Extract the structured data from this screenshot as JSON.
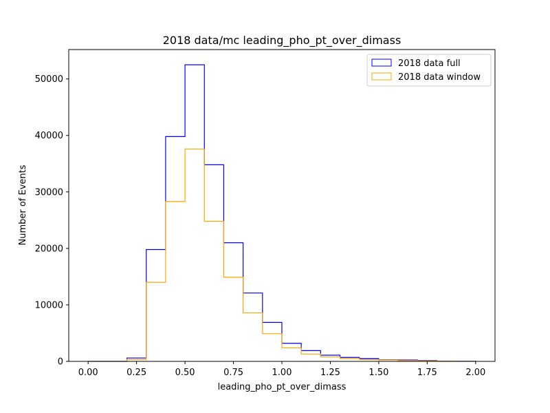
{
  "chart_data": {
    "type": "step-histogram",
    "title": "2018 data/mc leading_pho_pt_over_dimass",
    "xlabel": "leading_pho_pt_over_dimass",
    "ylabel": "Number of Events",
    "xlim": [
      -0.1,
      2.1
    ],
    "ylim": [
      0,
      55200
    ],
    "xticks": [
      0.0,
      0.25,
      0.5,
      0.75,
      1.0,
      1.25,
      1.5,
      1.75,
      2.0
    ],
    "xtick_labels": [
      "0.00",
      "0.25",
      "0.50",
      "0.75",
      "1.00",
      "1.25",
      "1.50",
      "1.75",
      "2.00"
    ],
    "yticks": [
      0,
      10000,
      20000,
      30000,
      40000,
      50000
    ],
    "ytick_labels": [
      "0",
      "10000",
      "20000",
      "30000",
      "40000",
      "50000"
    ],
    "grid": false,
    "legend_position": "top-right",
    "bin_edges": [
      0.0,
      0.1,
      0.2,
      0.3,
      0.4,
      0.5,
      0.6,
      0.7,
      0.8,
      0.9,
      1.0,
      1.1,
      1.2,
      1.3,
      1.4,
      1.5,
      1.6,
      1.7,
      1.8,
      1.9,
      2.0
    ],
    "series": [
      {
        "name": "2018 data full",
        "color": "#0000ff",
        "values": [
          0,
          0,
          600,
          19800,
          39800,
          52500,
          34800,
          21000,
          12100,
          6900,
          3200,
          1900,
          1100,
          700,
          500,
          300,
          250,
          150,
          50,
          30
        ]
      },
      {
        "name": "2018 data window",
        "color": "#ffa500",
        "values": [
          0,
          0,
          350,
          14000,
          28300,
          37600,
          24800,
          14900,
          8600,
          4900,
          2400,
          1300,
          800,
          500,
          350,
          250,
          150,
          100,
          40,
          20
        ]
      }
    ]
  }
}
